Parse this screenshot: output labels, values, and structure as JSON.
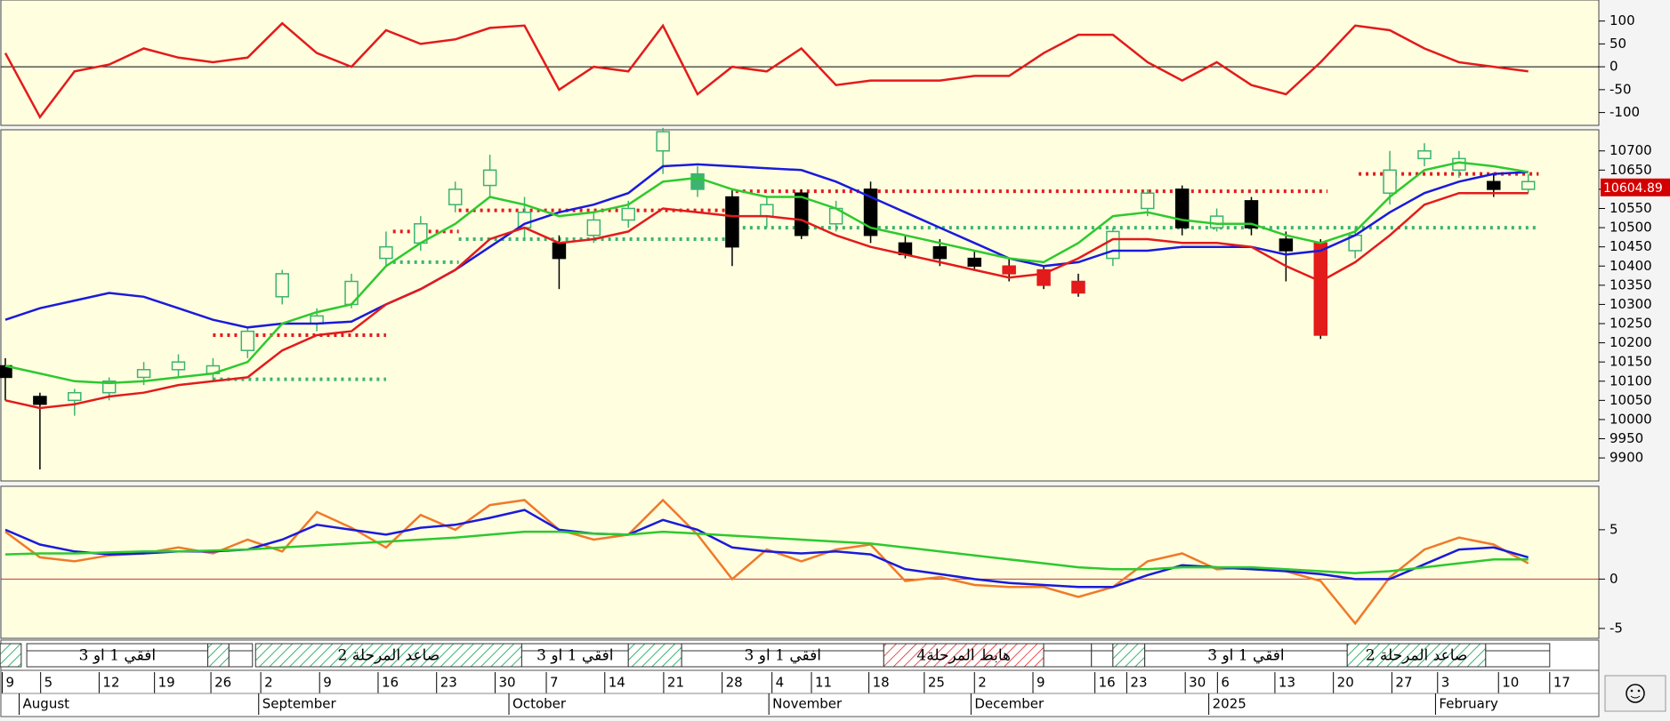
{
  "chart_data": [
    {
      "type": "line",
      "ylim": [
        -128,
        146
      ],
      "yticks": [
        100,
        50,
        0,
        -50,
        -100
      ],
      "hline": 0,
      "series": [
        {
          "color": "#e31b1b",
          "values": [
            30,
            -110,
            -10,
            5,
            40,
            20,
            10,
            20,
            95,
            30,
            0,
            80,
            50,
            60,
            85,
            90,
            -50,
            0,
            -10,
            90,
            -60,
            0,
            -10,
            40,
            -40,
            -30,
            -30,
            -30,
            -20,
            -20,
            30,
            70,
            70,
            10,
            -30,
            10,
            -40,
            -60,
            10,
            90,
            80,
            40,
            10,
            0,
            -10
          ]
        }
      ]
    },
    {
      "type": "candlestick",
      "ylim": [
        9840,
        10755
      ],
      "yticks": [
        9900,
        9950,
        10000,
        10050,
        10100,
        10150,
        10200,
        10250,
        10300,
        10350,
        10400,
        10450,
        10500,
        10550,
        10600,
        10650,
        10700
      ],
      "open": [
        10140,
        10060,
        10050,
        10070,
        10110,
        10130,
        10120,
        10180,
        10320,
        10250,
        10300,
        10420,
        10460,
        10560,
        10610,
        10500,
        10460,
        10480,
        10520,
        10700,
        10640,
        10580,
        10530,
        10590,
        10510,
        10600,
        10460,
        10450,
        10420,
        10400,
        10390,
        10360,
        10420,
        10550,
        10600,
        10500,
        10570,
        10470,
        10460,
        10440,
        10590,
        10680,
        10650,
        10620,
        10600
      ],
      "close": [
        10110,
        10040,
        10070,
        10100,
        10130,
        10150,
        10140,
        10230,
        10380,
        10270,
        10360,
        10450,
        10510,
        10600,
        10650,
        10540,
        10420,
        10520,
        10550,
        10750,
        10600,
        10450,
        10560,
        10480,
        10550,
        10480,
        10430,
        10420,
        10400,
        10380,
        10350,
        10330,
        10490,
        10590,
        10500,
        10530,
        10500,
        10440,
        10220,
        10480,
        10650,
        10700,
        10680,
        10600,
        10620
      ],
      "high": [
        10160,
        10070,
        10080,
        10110,
        10150,
        10170,
        10160,
        10240,
        10390,
        10290,
        10380,
        10490,
        10530,
        10620,
        10690,
        10580,
        10480,
        10540,
        10570,
        10760,
        10660,
        10600,
        10580,
        10600,
        10570,
        10620,
        10480,
        10470,
        10440,
        10420,
        10400,
        10380,
        10500,
        10600,
        10610,
        10550,
        10580,
        10490,
        10470,
        10500,
        10700,
        10720,
        10700,
        10640,
        10640
      ],
      "low": [
        10050,
        9870,
        10010,
        10050,
        10090,
        10110,
        10100,
        10160,
        10300,
        10230,
        10290,
        10400,
        10440,
        10540,
        10580,
        10470,
        10340,
        10460,
        10500,
        10640,
        10580,
        10400,
        10500,
        10470,
        10490,
        10460,
        10420,
        10400,
        10390,
        10360,
        10340,
        10320,
        10400,
        10530,
        10480,
        10490,
        10480,
        10360,
        10210,
        10420,
        10560,
        10660,
        10630,
        10580,
        10590
      ],
      "candle_colors": [
        "#000000",
        "#000000",
        "#3cb371",
        "#3cb371",
        "#3cb371",
        "#3cb371",
        "#3cb371",
        "#3cb371",
        "#3cb371",
        "#3cb371",
        "#3cb371",
        "#3cb371",
        "#3cb371",
        "#3cb371",
        "#3cb371",
        "#3cb371",
        "#000000",
        "#3cb371",
        "#3cb371",
        "#3cb371",
        "#3cb371",
        "#000000",
        "#3cb371",
        "#000000",
        "#3cb371",
        "#000000",
        "#000000",
        "#000000",
        "#000000",
        "#e31b1b",
        "#e31b1b",
        "#e31b1b",
        "#3cb371",
        "#3cb371",
        "#000000",
        "#3cb371",
        "#000000",
        "#000000",
        "#e31b1b",
        "#3cb371",
        "#3cb371",
        "#3cb371",
        "#3cb371",
        "#000000",
        "#3cb371"
      ],
      "series": [
        {
          "color": "#1a1adb",
          "values": [
            10260,
            10290,
            10310,
            10330,
            10320,
            10290,
            10260,
            10240,
            10250,
            10250,
            10255,
            10300,
            10340,
            10390,
            10450,
            10510,
            10540,
            10560,
            10590,
            10660,
            10665,
            10660,
            10655,
            10650,
            10620,
            10580,
            10540,
            10500,
            10460,
            10420,
            10400,
            10410,
            10440,
            10440,
            10450,
            10450,
            10450,
            10430,
            10440,
            10480,
            10540,
            10590,
            10620,
            10640,
            10645
          ]
        },
        {
          "color": "#2ec92e",
          "values": [
            10140,
            10120,
            10100,
            10095,
            10100,
            10110,
            10120,
            10150,
            10250,
            10280,
            10300,
            10400,
            10460,
            10510,
            10580,
            10560,
            10530,
            10540,
            10560,
            10620,
            10630,
            10600,
            10580,
            10580,
            10550,
            10500,
            10480,
            10460,
            10440,
            10420,
            10410,
            10460,
            10530,
            10540,
            10520,
            10510,
            10510,
            10480,
            10460,
            10490,
            10580,
            10650,
            10670,
            10660,
            10645
          ]
        },
        {
          "color": "#e31b1b",
          "values": [
            10050,
            10030,
            10040,
            10060,
            10070,
            10090,
            10100,
            10110,
            10180,
            10220,
            10230,
            10300,
            10340,
            10390,
            10470,
            10500,
            10460,
            10470,
            10490,
            10550,
            10540,
            10530,
            10530,
            10520,
            10480,
            10450,
            10430,
            10410,
            10390,
            10370,
            10380,
            10420,
            10470,
            10470,
            10460,
            10460,
            10450,
            10400,
            10360,
            10410,
            10480,
            10560,
            10590,
            10590,
            10590
          ]
        }
      ],
      "levels": [
        {
          "value": 10220,
          "from": 6,
          "to": 11,
          "color": "#e31b1b"
        },
        {
          "value": 10490,
          "from": 11.2,
          "to": 13.1,
          "color": "#e31b1b"
        },
        {
          "value": 10545,
          "from": 13.1,
          "to": 21.2,
          "color": "#e31b1b"
        },
        {
          "value": 10595,
          "from": 21.1,
          "to": 38.2,
          "color": "#e31b1b"
        },
        {
          "value": 10640,
          "from": 39.1,
          "to": 44.3,
          "color": "#e31b1b"
        },
        {
          "value": 10105,
          "from": 6,
          "to": 11,
          "color": "#3cb371"
        },
        {
          "value": 10410,
          "from": 11.2,
          "to": 13.1,
          "color": "#3cb371"
        },
        {
          "value": 10470,
          "from": 13.1,
          "to": 21.1,
          "color": "#3cb371"
        },
        {
          "value": 10500,
          "from": 21.1,
          "to": 44.3,
          "color": "#3cb371"
        }
      ],
      "last_price": 10604.89
    },
    {
      "type": "line",
      "ylim": [
        -6,
        9.4
      ],
      "yticks": [
        5,
        0,
        -5
      ],
      "hline": 0,
      "series": [
        {
          "color": "#f07a2a",
          "values": [
            4.8,
            2.2,
            1.8,
            2.4,
            2.6,
            3.2,
            2.6,
            4.0,
            2.8,
            6.8,
            5.2,
            3.2,
            6.5,
            5.0,
            7.5,
            8.0,
            5.0,
            4.0,
            4.5,
            8.0,
            4.5,
            0.0,
            3.0,
            1.8,
            3.0,
            3.5,
            -0.2,
            0.2,
            -0.6,
            -0.8,
            -0.8,
            -1.8,
            -0.8,
            1.8,
            2.6,
            1.0,
            1.2,
            0.8,
            -0.2,
            -4.5,
            0.2,
            3.0,
            4.2,
            3.5,
            1.6
          ]
        },
        {
          "color": "#1a1adb",
          "values": [
            5.0,
            3.5,
            2.8,
            2.5,
            2.6,
            2.8,
            2.8,
            3.0,
            4.0,
            5.5,
            5.0,
            4.5,
            5.2,
            5.5,
            6.2,
            7.0,
            5.0,
            4.6,
            4.5,
            6.0,
            5.0,
            3.2,
            2.8,
            2.6,
            2.8,
            2.5,
            1.0,
            0.5,
            0.0,
            -0.4,
            -0.6,
            -0.8,
            -0.8,
            0.4,
            1.4,
            1.2,
            1.0,
            0.8,
            0.5,
            0.0,
            0.0,
            1.5,
            3.0,
            3.2,
            2.2
          ]
        },
        {
          "color": "#2ec92e",
          "values": [
            2.5,
            2.6,
            2.6,
            2.7,
            2.8,
            2.8,
            2.9,
            3.0,
            3.2,
            3.4,
            3.6,
            3.8,
            4.0,
            4.2,
            4.5,
            4.8,
            4.8,
            4.6,
            4.5,
            4.8,
            4.6,
            4.4,
            4.2,
            4.0,
            3.8,
            3.6,
            3.2,
            2.8,
            2.4,
            2.0,
            1.6,
            1.2,
            1.0,
            1.0,
            1.2,
            1.2,
            1.2,
            1.0,
            0.8,
            0.6,
            0.8,
            1.2,
            1.6,
            2.0,
            2.0
          ]
        }
      ]
    }
  ],
  "phases": [
    {
      "from": -0.15,
      "to": 0.46,
      "kind": "up"
    },
    {
      "from": 0.62,
      "to": 5.85,
      "kind": "flat",
      "label": "افقي 1 او 3"
    },
    {
      "from": 5.85,
      "to": 6.46,
      "kind": "up"
    },
    {
      "from": 6.46,
      "to": 7.14,
      "kind": "flat"
    },
    {
      "from": 7.23,
      "to": 14.92,
      "kind": "up",
      "label": "صاعد المرحلة 2"
    },
    {
      "from": 14.92,
      "to": 18.0,
      "kind": "flat",
      "label": "افقي 1 او 3"
    },
    {
      "from": 18.0,
      "to": 19.54,
      "kind": "up"
    },
    {
      "from": 19.54,
      "to": 25.38,
      "kind": "flat",
      "label": "افقي 1 او 3"
    },
    {
      "from": 25.38,
      "to": 30.0,
      "kind": "down",
      "label": "هابط المرحلة4"
    },
    {
      "from": 30.0,
      "to": 31.38,
      "kind": "flat"
    },
    {
      "from": 31.38,
      "to": 32.0,
      "kind": "flat"
    },
    {
      "from": 32.0,
      "to": 32.92,
      "kind": "up"
    },
    {
      "from": 32.92,
      "to": 38.77,
      "kind": "flat",
      "label": "افقي 1 او 3"
    },
    {
      "from": 38.77,
      "to": 42.77,
      "kind": "up",
      "label": "صاعد المرحلة 2"
    },
    {
      "from": 42.77,
      "to": 44.62,
      "kind": "flat"
    }
  ],
  "x_axis": {
    "days": [
      {
        "value": -0.09,
        "label": "9"
      },
      {
        "value": 1.02,
        "label": "5"
      },
      {
        "value": 2.71,
        "label": "12"
      },
      {
        "value": 4.31,
        "label": "19"
      },
      {
        "value": 5.94,
        "label": "26"
      },
      {
        "value": 7.38,
        "label": "2"
      },
      {
        "value": 9.08,
        "label": "9"
      },
      {
        "value": 10.77,
        "label": "16"
      },
      {
        "value": 12.46,
        "label": "23"
      },
      {
        "value": 14.15,
        "label": "30"
      },
      {
        "value": 15.63,
        "label": "7"
      },
      {
        "value": 17.32,
        "label": "14"
      },
      {
        "value": 19.02,
        "label": "21"
      },
      {
        "value": 20.71,
        "label": "28"
      },
      {
        "value": 22.15,
        "label": "4"
      },
      {
        "value": 23.29,
        "label": "11"
      },
      {
        "value": 24.95,
        "label": "18"
      },
      {
        "value": 26.55,
        "label": "25"
      },
      {
        "value": 28.0,
        "label": "2"
      },
      {
        "value": 29.69,
        "label": "9"
      },
      {
        "value": 31.48,
        "label": "16"
      },
      {
        "value": 32.4,
        "label": "23"
      },
      {
        "value": 34.09,
        "label": "30"
      },
      {
        "value": 35.02,
        "label": "6"
      },
      {
        "value": 36.68,
        "label": "13"
      },
      {
        "value": 38.37,
        "label": "20"
      },
      {
        "value": 40.06,
        "label": "27"
      },
      {
        "value": 41.38,
        "label": "3"
      },
      {
        "value": 43.14,
        "label": "10"
      },
      {
        "value": 44.62,
        "label": "17"
      }
    ],
    "months": [
      {
        "value": 0.4,
        "label": "August"
      },
      {
        "value": 7.32,
        "label": "September"
      },
      {
        "value": 14.55,
        "label": "October"
      },
      {
        "value": 22.06,
        "label": "November"
      },
      {
        "value": 27.9,
        "label": "December"
      },
      {
        "value": 34.77,
        "label": "2025"
      },
      {
        "value": 41.32,
        "label": "February"
      }
    ]
  }
}
